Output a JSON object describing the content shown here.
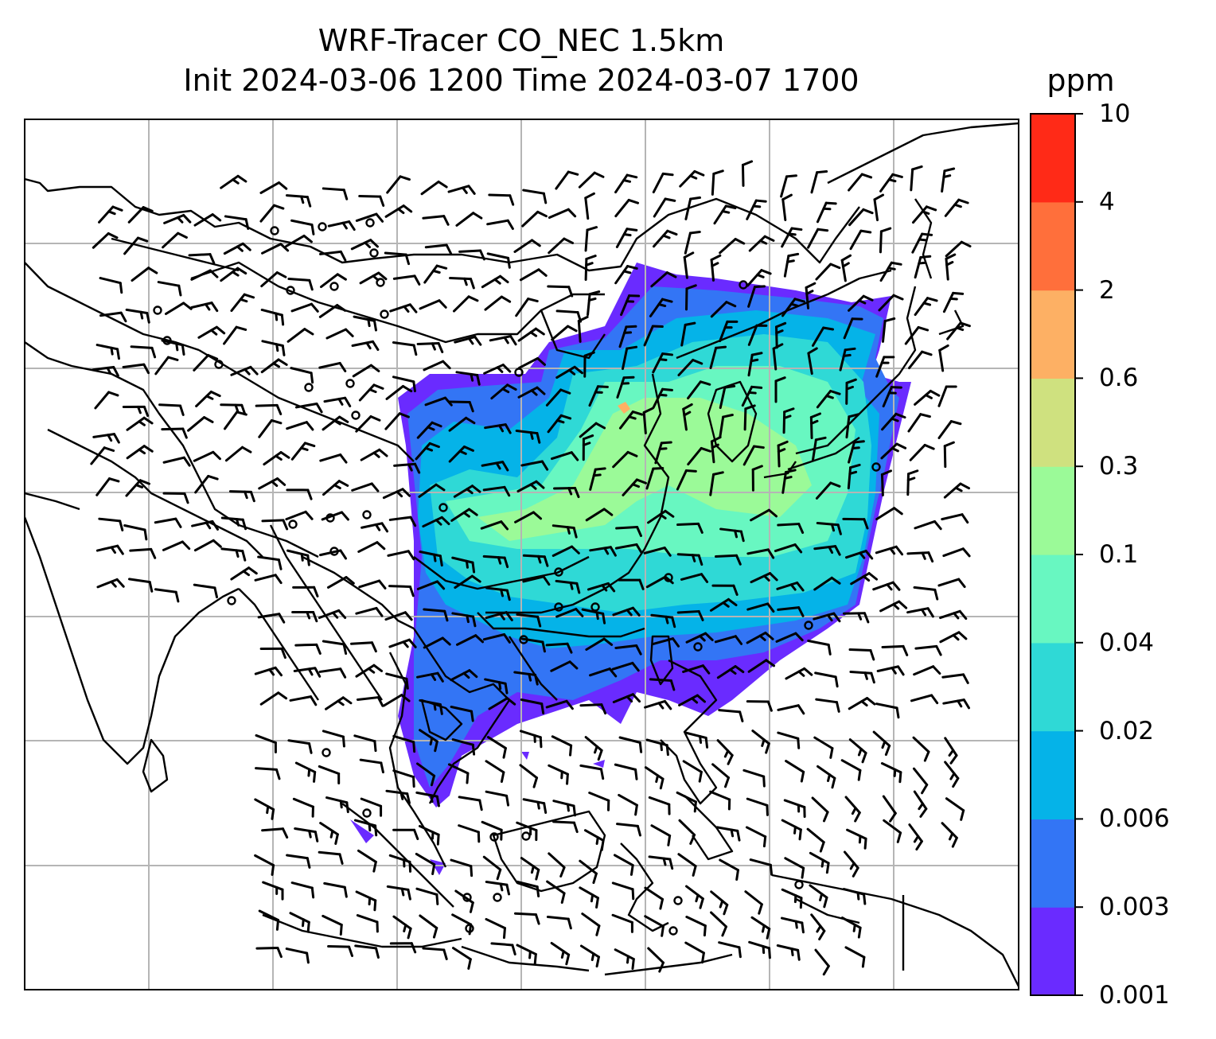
{
  "title_line1": "WRF-Tracer CO_NEC 1.5km",
  "title_line2": "Init 2024-03-06 1200 Time 2024-03-07 1700",
  "colorbar": {
    "unit": "ppm",
    "levels": [
      "0.001",
      "0.003",
      "0.006",
      "0.02",
      "0.04",
      "0.1",
      "0.3",
      "0.6",
      "2",
      "4",
      "10"
    ],
    "colors": [
      "#6a2bff",
      "#3375f5",
      "#05b3e8",
      "#2fd9d6",
      "#68f7c1",
      "#9bfa98",
      "#cfe17f",
      "#fdb064",
      "#ff6f3b",
      "#ff2a17"
    ]
  },
  "map": {
    "grid": "on",
    "plume_colors": {
      "outer": "#6a2bff",
      "band2": "#3375f5",
      "band3": "#05b3e8",
      "band4": "#2fd9d6",
      "band5": "#68f7c1",
      "band6": "#9bfa98",
      "hotspot": "#fdb064"
    }
  }
}
